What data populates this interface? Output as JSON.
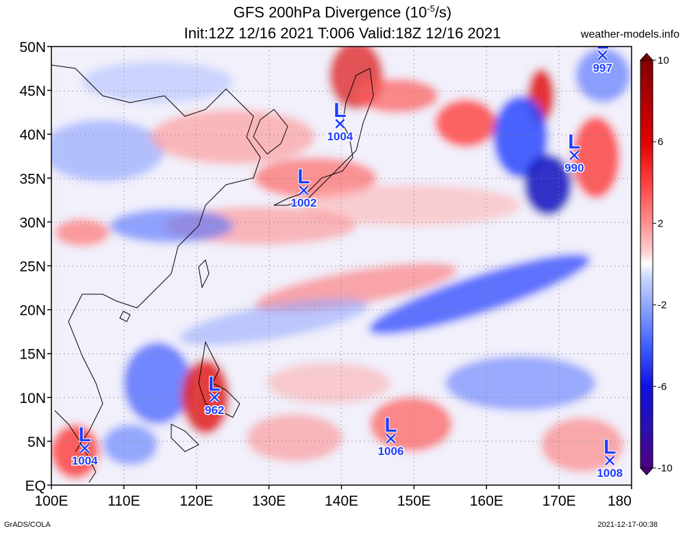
{
  "header": {
    "title_line1": "GFS 200hPa Divergence (10",
    "title_exp": "-5",
    "title_unit_tail": "/s)",
    "title_line2": "Init:12Z 12/16 2021 T:006 Valid:18Z 12/16 2021",
    "site": "weather-models.info"
  },
  "axes": {
    "lat_labels": [
      "50N",
      "45N",
      "40N",
      "35N",
      "30N",
      "25N",
      "20N",
      "15N",
      "10N",
      "5N",
      "EQ"
    ],
    "lat_values": [
      50,
      45,
      40,
      35,
      30,
      25,
      20,
      15,
      10,
      5,
      0
    ],
    "lon_labels": [
      "100E",
      "110E",
      "120E",
      "130E",
      "140E",
      "150E",
      "160E",
      "170E",
      "180"
    ],
    "lon_values": [
      100,
      110,
      120,
      130,
      140,
      150,
      160,
      170,
      180
    ]
  },
  "colorbar": {
    "labels": [
      "10",
      "6",
      "2",
      "-2",
      "-6",
      "-10"
    ],
    "values": [
      10,
      6,
      2,
      -2,
      -6,
      -10
    ],
    "colors": [
      "#500080",
      "#1010e0",
      "#4060ff",
      "#90a8ff",
      "#ccd8ff",
      "#ffffff",
      "#ffd0d0",
      "#ff9090",
      "#ff4040",
      "#e00000",
      "#900000"
    ]
  },
  "lows": [
    {
      "label": "L",
      "pressure": "1004",
      "lon": 139.8,
      "lat": 41.2
    },
    {
      "label": "L",
      "pressure": "1002",
      "lon": 134.8,
      "lat": 33.6
    },
    {
      "label": "L",
      "pressure": "990",
      "lon": 172.1,
      "lat": 37.6
    },
    {
      "label": "L",
      "pressure": "997",
      "lon": 176.0,
      "lat": 49.0
    },
    {
      "label": "L",
      "pressure": "962",
      "lon": 122.5,
      "lat": 10.0
    },
    {
      "label": "L",
      "pressure": "1006",
      "lon": 146.8,
      "lat": 5.3
    },
    {
      "label": "L",
      "pressure": "1004",
      "lon": 104.6,
      "lat": 4.2
    },
    {
      "label": "L",
      "pressure": "1008",
      "lon": 177.0,
      "lat": 2.8
    }
  ],
  "footer": {
    "left": "GrADS/COLA",
    "right": "2021-12-17-00:38"
  }
}
